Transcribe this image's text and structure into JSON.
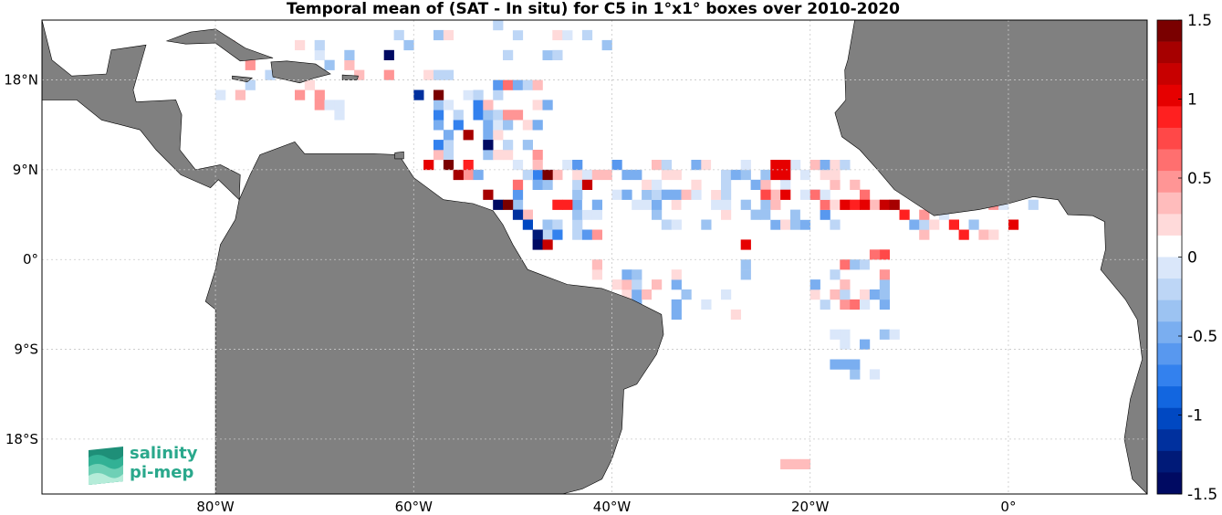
{
  "title": "Temporal mean of (SAT - In situ) for C5 in 1°x1° boxes over 2010-2020",
  "map": {
    "xticks": [
      {
        "label": "80°W",
        "lon": -80
      },
      {
        "label": "60°W",
        "lon": -60
      },
      {
        "label": "40°W",
        "lon": -40
      },
      {
        "label": "20°W",
        "lon": -20
      },
      {
        "label": "0°",
        "lon": 0
      }
    ],
    "yticks": [
      {
        "label": "18°N",
        "lat": 18
      },
      {
        "label": "9°N",
        "lat": 9
      },
      {
        "label": "0°",
        "lat": 0
      },
      {
        "label": "9°S",
        "lat": -9
      },
      {
        "label": "18°S",
        "lat": -18
      }
    ],
    "extent": {
      "lon_min": -97.5,
      "lon_max": 14,
      "lat_min": -23.5,
      "lat_max": 24
    },
    "grid": true,
    "land_color": "#808080",
    "ocean_color": "#ffffff"
  },
  "colorbar": {
    "min": -1.5,
    "max": 1.5,
    "ticks": [
      "1.5",
      "1",
      "0.5",
      "0",
      "-0.5",
      "-1",
      "-1.5"
    ],
    "colors": [
      "#7a0000",
      "#a60000",
      "#c80000",
      "#e60000",
      "#ff2020",
      "#ff4848",
      "#ff6f6f",
      "#ff9595",
      "#ffbcbc",
      "#ffdada",
      "#ffffff",
      "#dae7fa",
      "#bdd6f6",
      "#9cc3f2",
      "#7aaef0",
      "#5898ef",
      "#3381ee",
      "#1266e0",
      "#0048c2",
      "#00309e",
      "#001a78",
      "#000a62"
    ]
  },
  "logo": {
    "line1": "salinity",
    "line2": "pi-mep"
  }
}
